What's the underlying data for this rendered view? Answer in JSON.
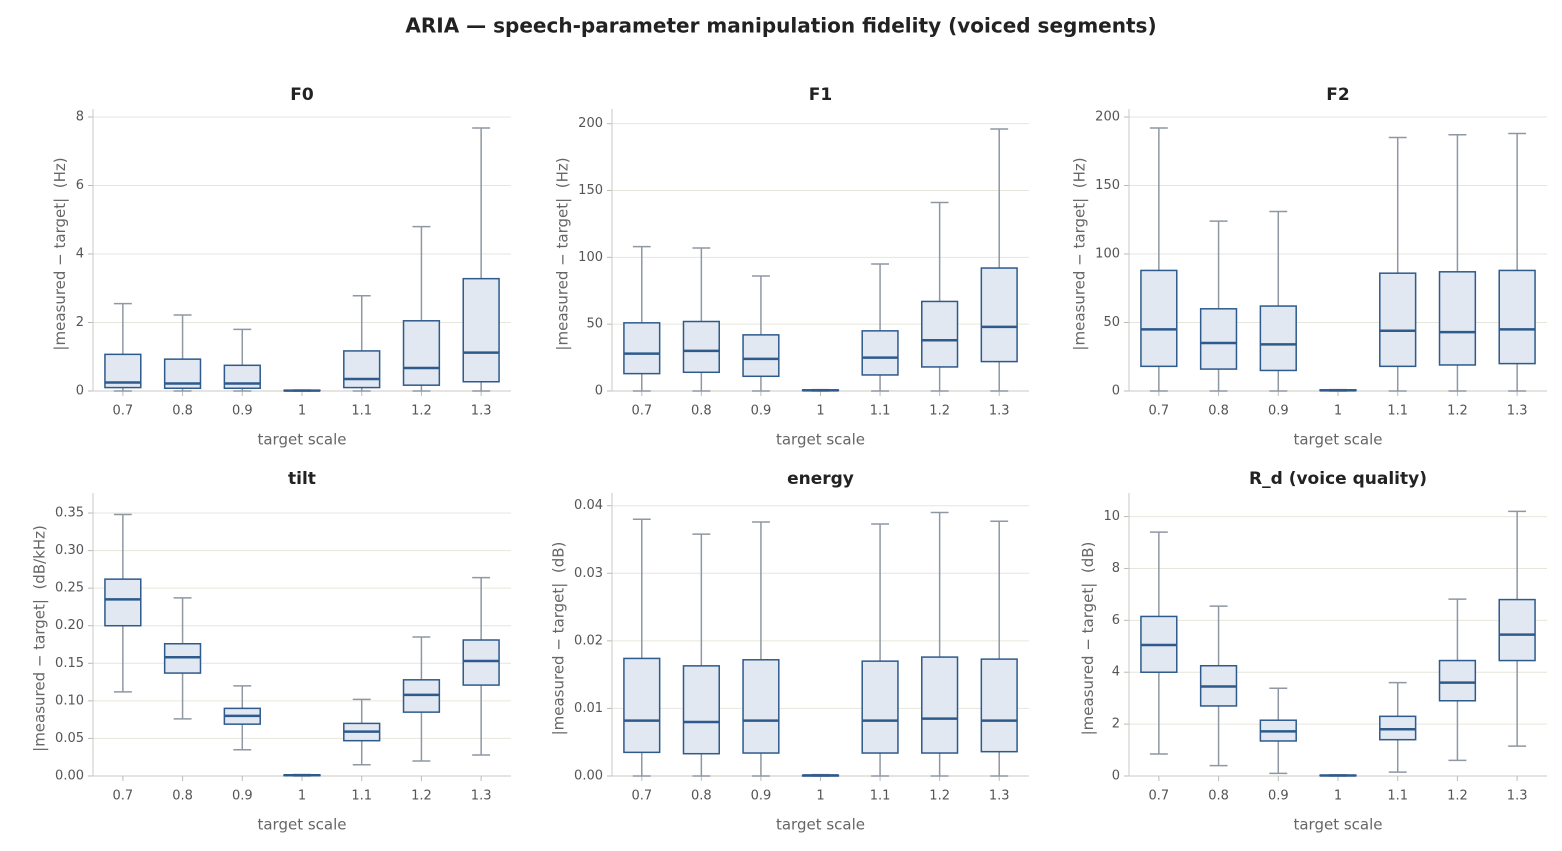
{
  "title": "ARIA — speech-parameter manipulation fidelity (voiced segments)",
  "chart_data": [
    {
      "type": "box",
      "title": "F0",
      "xlabel": "target scale",
      "ylabel": "|measured − target|  (Hz)",
      "categories": [
        "0.7",
        "0.8",
        "0.9",
        "1",
        "1.1",
        "1.2",
        "1.3"
      ],
      "fill": "#e1e8f1",
      "color": "#2e5a8c",
      "whisker_color": "#8f97a3",
      "grid": true,
      "ylim": [
        0,
        8
      ],
      "yticks": [
        0,
        2,
        4,
        6,
        8
      ],
      "boxes": [
        {
          "min": 0,
          "q1": 0.1,
          "median": 0.25,
          "q3": 1.07,
          "max": 2.55
        },
        {
          "min": 0,
          "q1": 0.08,
          "median": 0.22,
          "q3": 0.93,
          "max": 2.22
        },
        {
          "min": 0,
          "q1": 0.08,
          "median": 0.22,
          "q3": 0.75,
          "max": 1.8
        },
        {
          "min": 0,
          "q1": 0.01,
          "median": 0.01,
          "q3": 0.02,
          "max": 0.03
        },
        {
          "min": 0,
          "q1": 0.1,
          "median": 0.35,
          "q3": 1.17,
          "max": 2.78
        },
        {
          "min": 0,
          "q1": 0.17,
          "median": 0.67,
          "q3": 2.05,
          "max": 4.8
        },
        {
          "min": 0,
          "q1": 0.27,
          "median": 1.12,
          "q3": 3.28,
          "max": 7.68
        }
      ]
    },
    {
      "type": "box",
      "title": "F1",
      "xlabel": "target scale",
      "ylabel": "|measured − target|  (Hz)",
      "categories": [
        "0.7",
        "0.8",
        "0.9",
        "1",
        "1.1",
        "1.2",
        "1.3"
      ],
      "fill": "#e1e8f1",
      "color": "#2e5a8c",
      "whisker_color": "#8f97a3",
      "grid": true,
      "ylim": [
        0,
        205
      ],
      "yticks": [
        0,
        50,
        100,
        150,
        200
      ],
      "boxes": [
        {
          "min": 0,
          "q1": 13,
          "median": 28,
          "q3": 51,
          "max": 108
        },
        {
          "min": 0,
          "q1": 14,
          "median": 30,
          "q3": 52,
          "max": 107
        },
        {
          "min": 0,
          "q1": 11,
          "median": 24,
          "q3": 42,
          "max": 86
        },
        {
          "min": 0,
          "q1": 0.3,
          "median": 0.5,
          "q3": 0.8,
          "max": 1
        },
        {
          "min": 0,
          "q1": 12,
          "median": 25,
          "q3": 45,
          "max": 95
        },
        {
          "min": 0,
          "q1": 18,
          "median": 38,
          "q3": 67,
          "max": 141
        },
        {
          "min": 0,
          "q1": 22,
          "median": 48,
          "q3": 92,
          "max": 196
        }
      ]
    },
    {
      "type": "box",
      "title": "F2",
      "xlabel": "target scale",
      "ylabel": "|measured − target|  (Hz)",
      "categories": [
        "0.7",
        "0.8",
        "0.9",
        "1",
        "1.1",
        "1.2",
        "1.3"
      ],
      "fill": "#e1e8f1",
      "color": "#2e5a8c",
      "whisker_color": "#8f97a3",
      "grid": true,
      "ylim": [
        0,
        200
      ],
      "yticks": [
        0,
        50,
        100,
        150,
        200
      ],
      "boxes": [
        {
          "min": 0,
          "q1": 18,
          "median": 45,
          "q3": 88,
          "max": 192
        },
        {
          "min": 0,
          "q1": 16,
          "median": 35,
          "q3": 60,
          "max": 124
        },
        {
          "min": 0,
          "q1": 15,
          "median": 34,
          "q3": 62,
          "max": 131
        },
        {
          "min": 0,
          "q1": 0.3,
          "median": 0.5,
          "q3": 0.8,
          "max": 1
        },
        {
          "min": 0,
          "q1": 18,
          "median": 44,
          "q3": 86,
          "max": 185
        },
        {
          "min": 0,
          "q1": 19,
          "median": 43,
          "q3": 87,
          "max": 187
        },
        {
          "min": 0,
          "q1": 20,
          "median": 45,
          "q3": 88,
          "max": 188
        }
      ]
    },
    {
      "type": "box",
      "title": "tilt",
      "xlabel": "target scale",
      "ylabel": "|measured − target|  (dB/kHz)",
      "categories": [
        "0.7",
        "0.8",
        "0.9",
        "1",
        "1.1",
        "1.2",
        "1.3"
      ],
      "fill": "#e1e8f1",
      "color": "#2e5a8c",
      "whisker_color": "#8f97a3",
      "grid": true,
      "ylim": [
        0,
        0.366
      ],
      "yticks": [
        {
          "value": 0,
          "label": "0.00"
        },
        {
          "value": 0.05,
          "label": "0.05"
        },
        {
          "value": 0.1,
          "label": "0.10"
        },
        {
          "value": 0.15,
          "label": "0.15"
        },
        {
          "value": 0.2,
          "label": "0.20"
        },
        {
          "value": 0.25,
          "label": "0.25"
        },
        {
          "value": 0.3,
          "label": "0.30"
        },
        {
          "value": 0.35,
          "label": "0.35"
        }
      ],
      "boxes": [
        {
          "min": 0.112,
          "q1": 0.2,
          "median": 0.235,
          "q3": 0.262,
          "max": 0.348
        },
        {
          "min": 0.076,
          "q1": 0.137,
          "median": 0.158,
          "q3": 0.176,
          "max": 0.237
        },
        {
          "min": 0.035,
          "q1": 0.069,
          "median": 0.08,
          "q3": 0.09,
          "max": 0.12
        },
        {
          "min": 0,
          "q1": 0.0005,
          "median": 0.001,
          "q3": 0.0015,
          "max": 0.002
        },
        {
          "min": 0.015,
          "q1": 0.047,
          "median": 0.059,
          "q3": 0.07,
          "max": 0.102
        },
        {
          "min": 0.02,
          "q1": 0.085,
          "median": 0.108,
          "q3": 0.128,
          "max": 0.185
        },
        {
          "min": 0.028,
          "q1": 0.121,
          "median": 0.153,
          "q3": 0.181,
          "max": 0.264
        }
      ]
    },
    {
      "type": "box",
      "title": "energy",
      "xlabel": "target scale",
      "ylabel": "|measured − target|  (dB)",
      "categories": [
        "0.7",
        "0.8",
        "0.9",
        "1",
        "1.1",
        "1.2",
        "1.3"
      ],
      "fill": "#e1e8f1",
      "color": "#2e5a8c",
      "whisker_color": "#8f97a3",
      "grid": true,
      "ylim": [
        0,
        0.0407
      ],
      "yticks": [
        {
          "value": 0,
          "label": "0.00"
        },
        {
          "value": 0.01,
          "label": "0.01"
        },
        {
          "value": 0.02,
          "label": "0.02"
        },
        {
          "value": 0.03,
          "label": "0.03"
        },
        {
          "value": 0.04,
          "label": "0.04"
        }
      ],
      "boxes": [
        {
          "min": 0,
          "q1": 0.0035,
          "median": 0.0082,
          "q3": 0.0174,
          "max": 0.038
        },
        {
          "min": 0,
          "q1": 0.0033,
          "median": 0.008,
          "q3": 0.0163,
          "max": 0.0358
        },
        {
          "min": 0,
          "q1": 0.0034,
          "median": 0.0082,
          "q3": 0.0172,
          "max": 0.0376
        },
        {
          "min": 0,
          "q1": 0,
          "median": 0.0001,
          "q3": 0.0001,
          "max": 0.0002
        },
        {
          "min": 0,
          "q1": 0.0034,
          "median": 0.0082,
          "q3": 0.017,
          "max": 0.0373
        },
        {
          "min": 0,
          "q1": 0.0034,
          "median": 0.0085,
          "q3": 0.0176,
          "max": 0.039
        },
        {
          "min": 0,
          "q1": 0.0036,
          "median": 0.0082,
          "q3": 0.0173,
          "max": 0.0377
        }
      ]
    },
    {
      "type": "box",
      "title": "R_d (voice quality)",
      "xlabel": "target scale",
      "ylabel": "|measured − target|  (dB)",
      "categories": [
        "0.7",
        "0.8",
        "0.9",
        "1",
        "1.1",
        "1.2",
        "1.3"
      ],
      "fill": "#e1e8f1",
      "color": "#2e5a8c",
      "whisker_color": "#8f97a3",
      "grid": true,
      "ylim": [
        0,
        10.6
      ],
      "yticks": [
        0,
        2,
        4,
        6,
        8,
        10
      ],
      "boxes": [
        {
          "min": 0.85,
          "q1": 4.0,
          "median": 5.05,
          "q3": 6.15,
          "max": 9.4
        },
        {
          "min": 0.4,
          "q1": 2.7,
          "median": 3.45,
          "q3": 4.25,
          "max": 6.55
        },
        {
          "min": 0.1,
          "q1": 1.35,
          "median": 1.72,
          "q3": 2.15,
          "max": 3.38
        },
        {
          "min": 0,
          "q1": 0.01,
          "median": 0.02,
          "q3": 0.03,
          "max": 0.05
        },
        {
          "min": 0.15,
          "q1": 1.4,
          "median": 1.8,
          "q3": 2.3,
          "max": 3.6
        },
        {
          "min": 0.6,
          "q1": 2.9,
          "median": 3.6,
          "q3": 4.45,
          "max": 6.82
        },
        {
          "min": 1.15,
          "q1": 4.45,
          "median": 5.45,
          "q3": 6.8,
          "max": 10.2
        }
      ]
    }
  ]
}
